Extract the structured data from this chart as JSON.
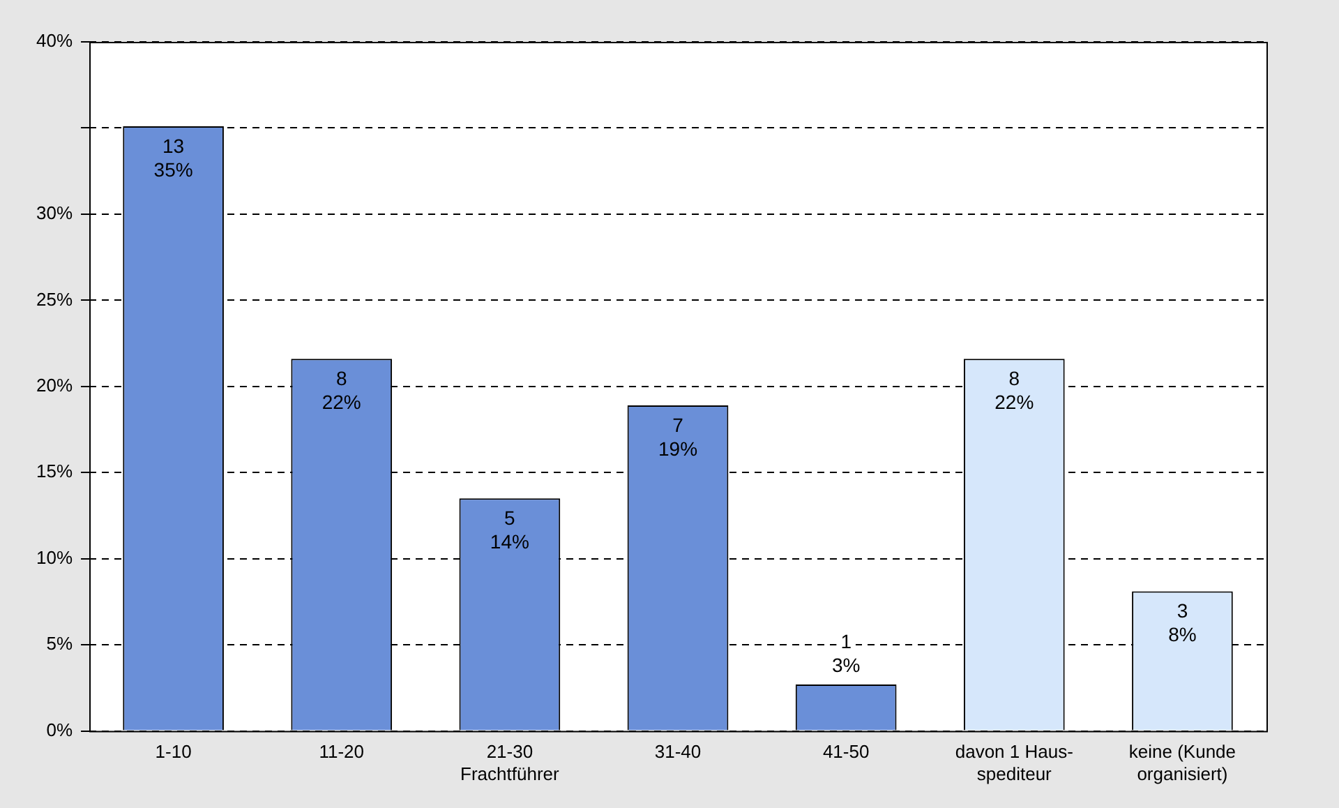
{
  "chart_data": {
    "type": "bar",
    "categories": [
      "1-10",
      "11-20",
      "21-30\nFrachtführer",
      "31-40",
      "41-50",
      "davon 1 Haus-\nspediteur",
      "keine (Kunde\norganisiert)"
    ],
    "values": [
      35.1,
      21.6,
      13.5,
      18.9,
      2.7,
      21.6,
      8.1
    ],
    "colors": [
      "#6a8fd8",
      "#6a8fd8",
      "#6a8fd8",
      "#6a8fd8",
      "#6a8fd8",
      "#d6e7fb",
      "#d6e7fb"
    ],
    "value_labels": [
      "13\n35%",
      "8\n22%",
      "5\n14%",
      "7\n19%",
      "1\n3%",
      "8\n22%",
      "3\n8%"
    ],
    "ylim": [
      0,
      40
    ],
    "yticks": [
      {
        "value": 0,
        "label": "0%"
      },
      {
        "value": 5,
        "label": "5%"
      },
      {
        "value": 10,
        "label": "10%"
      },
      {
        "value": 15,
        "label": "15%"
      },
      {
        "value": 20,
        "label": "20%"
      },
      {
        "value": 25,
        "label": "25%"
      },
      {
        "value": 30,
        "label": "30%"
      },
      {
        "value": 35,
        "label": null
      },
      {
        "value": 40,
        "label": "40%"
      }
    ],
    "grid": "y",
    "line_style": "dashed",
    "legend": false
  }
}
